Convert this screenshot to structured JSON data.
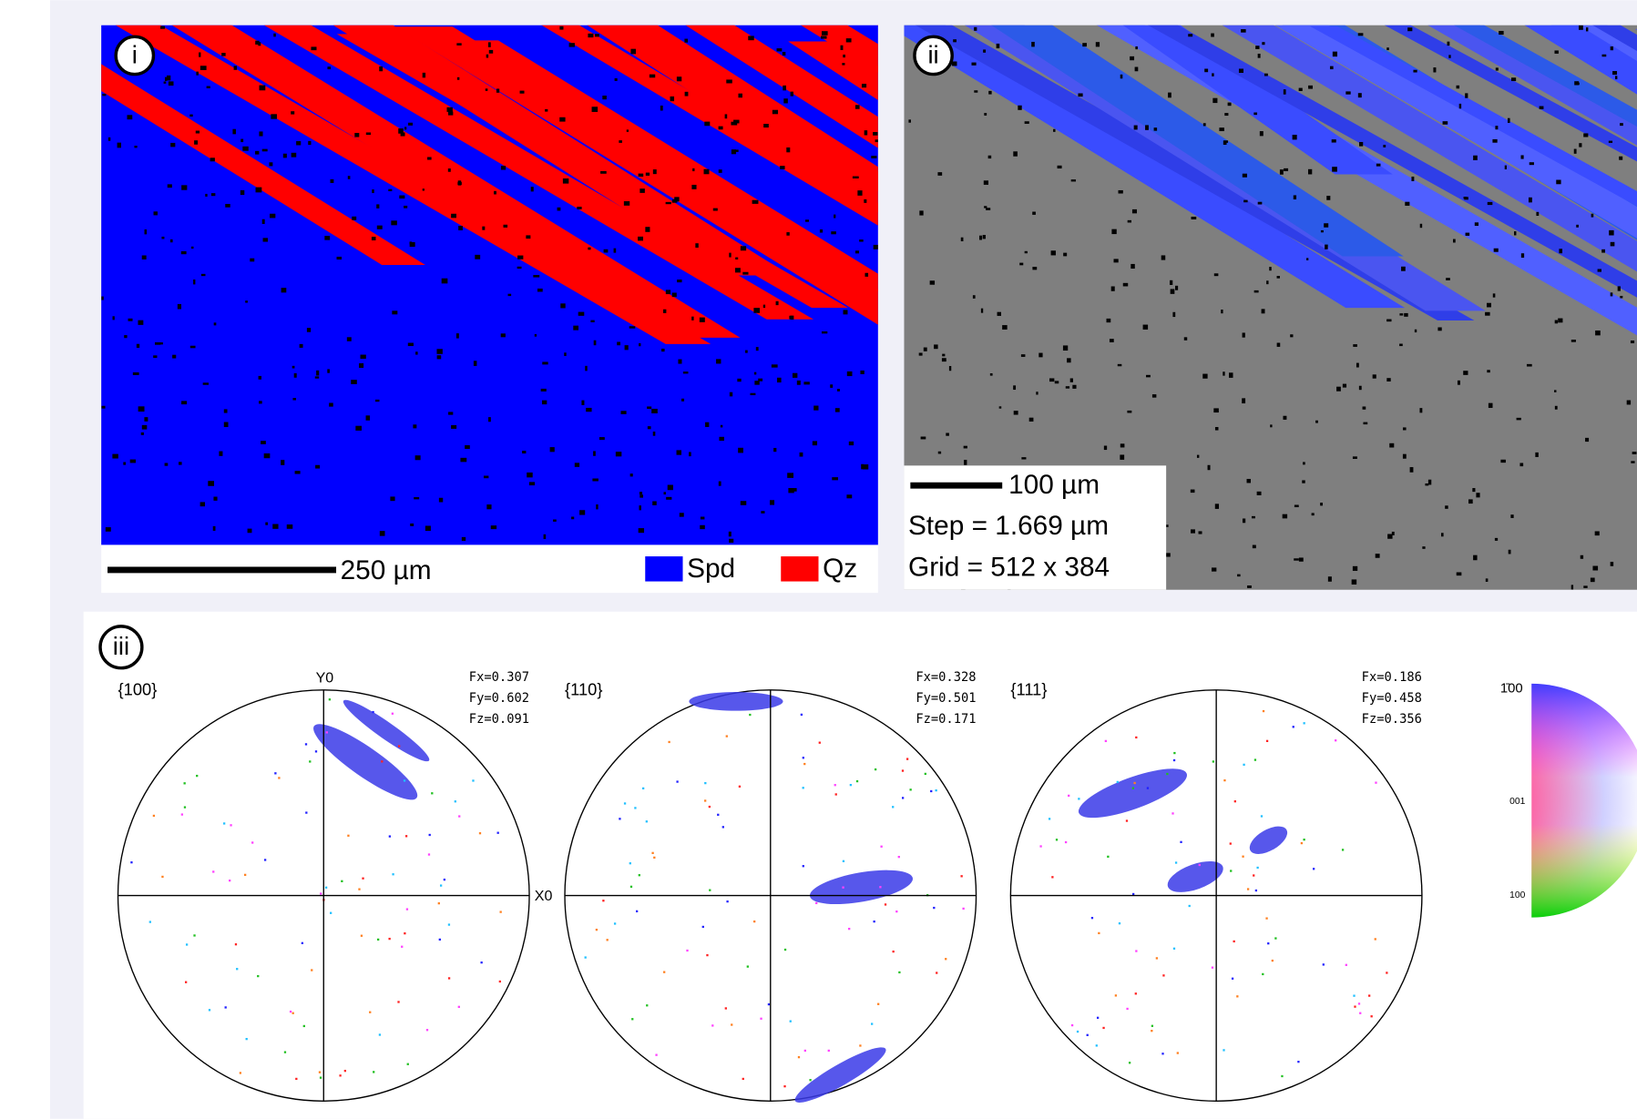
{
  "panels": [
    {
      "label": "i",
      "scale_bar": "250 µm",
      "legend": [
        {
          "name": "Spd",
          "color": "#0000ff"
        },
        {
          "name": "Qz",
          "color": "#ff0000"
        }
      ]
    },
    {
      "label": "ii",
      "scale_bar": "100 µm",
      "step": "Step = 1.669 µm",
      "grid": "Grid = 512 x 384"
    },
    {
      "label": "iii",
      "axis_labels": {
        "y": "Y0",
        "x": "X0"
      },
      "pole_figures": [
        {
          "title": "{100}",
          "fx": "Fx=0.307",
          "fy": "Fy=0.602",
          "fz": "Fz=0.091"
        },
        {
          "title": "{110}",
          "fx": "Fx=0.328",
          "fy": "Fy=0.501",
          "fz": "Fz=0.171"
        },
        {
          "title": "{111}",
          "fx": "Fx=0.186",
          "fy": "Fy=0.458",
          "fz": "Fz=0.356"
        }
      ],
      "color_key": [
        "1̄00",
        "001",
        "100"
      ]
    }
  ]
}
